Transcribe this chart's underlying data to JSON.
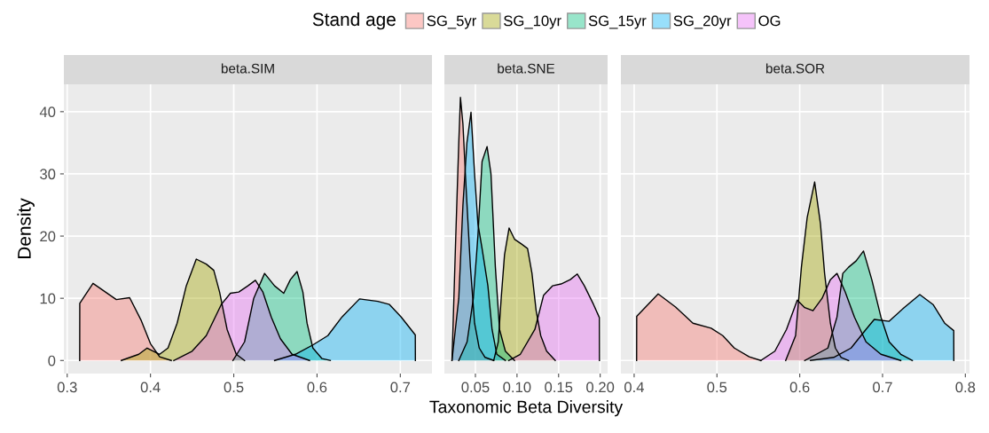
{
  "chart_data": [
    {
      "type": "area",
      "title": "beta.SIM",
      "ylabel": "Density",
      "legend_title": "Stand age",
      "legend": "top",
      "grid": true,
      "xlim": [
        0.296,
        0.738
      ],
      "xticks": [
        {
          "value": 0.3,
          "label": "0.3"
        },
        {
          "value": 0.4,
          "label": "0.4"
        },
        {
          "value": 0.5,
          "label": "0.5"
        },
        {
          "value": 0.6,
          "label": "0.6"
        },
        {
          "value": 0.7,
          "label": "0.7"
        }
      ],
      "ylim": [
        -2.1,
        44.4
      ],
      "yticks": [
        0,
        10,
        20,
        30,
        40
      ],
      "series": [
        {
          "name": "SG_5yr",
          "color": "#f8766d",
          "x": [
            0.315,
            0.3151,
            0.331,
            0.359,
            0.375,
            0.389,
            0.4,
            0.411,
            0.425
          ],
          "values": [
            0,
            9.2,
            12.4,
            9.8,
            10.1,
            6.4,
            2.7,
            0.6,
            0
          ]
        },
        {
          "name": "SG_10yr",
          "color": "#a3a500",
          "x": [
            0.365,
            0.386,
            0.396,
            0.411,
            0.421,
            0.432,
            0.443,
            0.455,
            0.467,
            0.476,
            0.483,
            0.492,
            0.503,
            0.513
          ],
          "values": [
            0,
            1.0,
            2.0,
            1.0,
            2,
            6,
            12,
            16.3,
            15.5,
            14.5,
            11,
            5,
            1,
            0
          ]
        },
        {
          "name": "SG_15yr",
          "color": "#00bf7d",
          "x": [
            0.499,
            0.513,
            0.524,
            0.537,
            0.549,
            0.56,
            0.568,
            0.576,
            0.583,
            0.588,
            0.595,
            0.606,
            0.616
          ],
          "values": [
            0,
            3,
            10,
            14,
            12,
            10.8,
            13,
            14.3,
            11,
            6,
            2,
            0.3,
            0
          ]
        },
        {
          "name": "SG_20yr",
          "color": "#00b0f6",
          "x": [
            0.549,
            0.574,
            0.595,
            0.613,
            0.63,
            0.651,
            0.673,
            0.687,
            0.701,
            0.718,
            0.7181
          ],
          "values": [
            0,
            1,
            2.5,
            4,
            7,
            9.9,
            9.5,
            9.0,
            7,
            4.1,
            0
          ]
        },
        {
          "name": "OG",
          "color": "#e76bf3",
          "x": [
            0.428,
            0.45,
            0.467,
            0.485,
            0.496,
            0.506,
            0.517,
            0.526,
            0.535,
            0.545,
            0.556,
            0.57,
            0.591
          ],
          "values": [
            0,
            1.5,
            4,
            9,
            10.8,
            11,
            12,
            12.9,
            11,
            7,
            3.5,
            1,
            0
          ]
        }
      ]
    },
    {
      "type": "area",
      "title": "beta.SNE",
      "xlabel": "Taxonomic Beta Diversity",
      "tick_labels": "x",
      "grid": true,
      "xlim": [
        0.0127,
        0.2089
      ],
      "xticks": [
        {
          "value": 0.05,
          "label": "0.05"
        },
        {
          "value": 0.1,
          "label": "0.10"
        },
        {
          "value": 0.15,
          "label": "0.15"
        },
        {
          "value": 0.2,
          "label": "0.20"
        }
      ],
      "ylim": [
        -2.1,
        44.4
      ],
      "yticks": [
        0,
        10,
        20,
        30,
        40
      ],
      "series": [
        {
          "name": "SG_5yr",
          "color": "#f8766d",
          "x": [
            0.0218,
            0.023,
            0.0264,
            0.03,
            0.032,
            0.035,
            0.0387,
            0.044,
            0.049,
            0.0546,
            0.0616,
            0.072
          ],
          "values": [
            0,
            5,
            20,
            35,
            42.3,
            38,
            28,
            15,
            6,
            2,
            0.5,
            0
          ]
        },
        {
          "name": "SG_10yr",
          "color": "#a3a500",
          "x": [
            0.072,
            0.0775,
            0.081,
            0.085,
            0.0905,
            0.097,
            0.1056,
            0.1127,
            0.118,
            0.123,
            0.1285,
            0.1356,
            0.146
          ],
          "values": [
            0,
            3,
            10,
            17,
            21.3,
            19.5,
            18.7,
            18,
            14,
            8,
            4,
            1.5,
            0
          ]
        },
        {
          "name": "SG_15yr",
          "color": "#00bf7d",
          "x": [
            0.03,
            0.04,
            0.0475,
            0.053,
            0.058,
            0.064,
            0.0687,
            0.074,
            0.079,
            0.086,
            0.097
          ],
          "values": [
            0,
            3,
            10,
            20,
            32,
            34.4,
            30,
            15,
            5,
            1.5,
            0
          ]
        },
        {
          "name": "SG_20yr",
          "color": "#00b0f6",
          "x": [
            0.0218,
            0.03,
            0.035,
            0.0398,
            0.0447,
            0.049,
            0.053,
            0.058,
            0.065,
            0.07,
            0.0757,
            0.086
          ],
          "values": [
            0,
            10,
            25,
            35,
            39.9,
            30,
            22,
            18,
            12,
            5,
            1,
            0
          ]
        },
        {
          "name": "OG",
          "color": "#e76bf3",
          "x": [
            0.09,
            0.104,
            0.1215,
            0.132,
            0.1426,
            0.153,
            0.164,
            0.1725,
            0.181,
            0.192,
            0.199,
            0.1991
          ],
          "values": [
            0,
            1,
            5,
            10.5,
            12,
            12.3,
            13,
            13.9,
            12,
            9,
            6.9,
            0
          ]
        }
      ]
    },
    {
      "type": "area",
      "title": "beta.SOR",
      "tick_labels": "x",
      "grid": true,
      "xlim": [
        0.384,
        0.805
      ],
      "xticks": [
        {
          "value": 0.4,
          "label": "0.4"
        },
        {
          "value": 0.5,
          "label": "0.5"
        },
        {
          "value": 0.6,
          "label": "0.6"
        },
        {
          "value": 0.7,
          "label": "0.7"
        },
        {
          "value": 0.8,
          "label": "0.8"
        }
      ],
      "ylim": [
        -2.1,
        44.4
      ],
      "yticks": [
        0,
        10,
        20,
        30,
        40
      ],
      "series": [
        {
          "name": "SG_5yr",
          "color": "#f8766d",
          "x": [
            0.403,
            0.4031,
            0.429,
            0.45,
            0.471,
            0.493,
            0.507,
            0.521,
            0.539,
            0.553
          ],
          "values": [
            0,
            7.1,
            10.7,
            8.6,
            6.0,
            5.2,
            4.0,
            2,
            0.6,
            0
          ]
        },
        {
          "name": "SG_10yr",
          "color": "#a3a500",
          "x": [
            0.583,
            0.595,
            0.602,
            0.609,
            0.618,
            0.625,
            0.63,
            0.637,
            0.643,
            0.65,
            0.659
          ],
          "values": [
            0,
            4,
            15,
            23,
            28.7,
            22,
            14,
            6,
            2,
            0.5,
            0
          ]
        },
        {
          "name": "SG_15yr",
          "color": "#00bf7d",
          "x": [
            0.606,
            0.634,
            0.645,
            0.652,
            0.659,
            0.668,
            0.677,
            0.687,
            0.698,
            0.708,
            0.722,
            0.736
          ],
          "values": [
            0,
            2,
            7,
            14,
            15,
            16,
            17.6,
            13,
            7,
            3,
            1,
            0
          ]
        },
        {
          "name": "SG_20yr",
          "color": "#00b0f6",
          "x": [
            0.613,
            0.641,
            0.662,
            0.68,
            0.69,
            0.708,
            0.726,
            0.745,
            0.761,
            0.775,
            0.786,
            0.7861
          ],
          "values": [
            0,
            0.5,
            2,
            5,
            6.6,
            6.3,
            8.5,
            10.6,
            9,
            6,
            4.8,
            0
          ]
        },
        {
          "name": "OG",
          "color": "#e76bf3",
          "x": [
            0.553,
            0.57,
            0.584,
            0.597,
            0.606,
            0.616,
            0.627,
            0.637,
            0.645,
            0.655,
            0.666,
            0.68,
            0.698,
            0.722
          ],
          "values": [
            0,
            1.5,
            5,
            9.7,
            8.5,
            8.0,
            10,
            13,
            14.0,
            11,
            7,
            3,
            1,
            0
          ]
        }
      ]
    }
  ]
}
